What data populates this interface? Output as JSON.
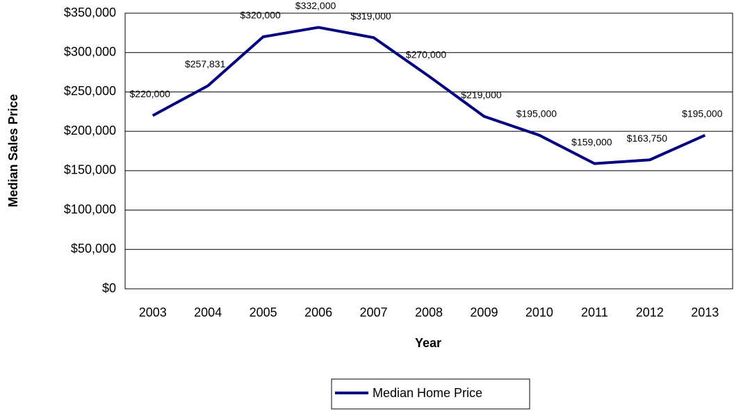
{
  "chart_data": {
    "type": "line",
    "x_label": "Year",
    "y_label": "Median Sales Price",
    "categories": [
      "2003",
      "2004",
      "2005",
      "2006",
      "2007",
      "2008",
      "2009",
      "2010",
      "2011",
      "2012",
      "2013"
    ],
    "series": [
      {
        "name": "Median Home Price",
        "color": "#000080",
        "values": [
          220000,
          257831,
          320000,
          332000,
          319000,
          270000,
          219000,
          195000,
          159000,
          163750,
          195000
        ],
        "value_labels": [
          "$220,000",
          "$257,831",
          "$320,000",
          "$332,000",
          "$319,000",
          "$270,000",
          "$219,000",
          "$195,000",
          "$159,000",
          "$163,750",
          "$195,000"
        ]
      }
    ],
    "ylim": [
      0,
      350000
    ],
    "yticks": [
      {
        "value": 0,
        "label": "$0"
      },
      {
        "value": 50000,
        "label": "$50,000"
      },
      {
        "value": 100000,
        "label": "$100,000"
      },
      {
        "value": 150000,
        "label": "$150,000"
      },
      {
        "value": 200000,
        "label": "$200,000"
      },
      {
        "value": 250000,
        "label": "$250,000"
      },
      {
        "value": 300000,
        "label": "$300,000"
      },
      {
        "value": 350000,
        "label": "$350,000"
      }
    ],
    "grid": true,
    "legend": "bottom"
  }
}
